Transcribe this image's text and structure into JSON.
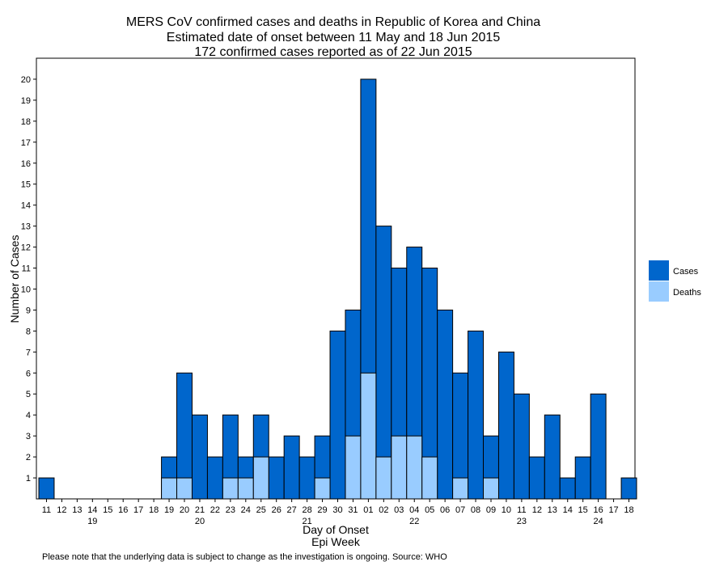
{
  "chart_data": {
    "type": "bar",
    "title": "MERS CoV confirmed cases and deaths in Republic of Korea and China",
    "subtitle": [
      "Estimated date of onset between 11 May and 18 Jun 2015",
      "172 confirmed cases reported as of 22 Jun 2015"
    ],
    "xlabel": "Day of Onset",
    "x2label": "Epi Week",
    "ylabel": "Number of Cases",
    "footnote": "Please note that the underlying data is subject to change as the investigation is ongoing. Source: WHO",
    "categories": [
      "11",
      "12",
      "13",
      "14",
      "15",
      "16",
      "17",
      "18",
      "19",
      "20",
      "21",
      "22",
      "23",
      "24",
      "25",
      "26",
      "27",
      "28",
      "29",
      "30",
      "31",
      "01",
      "02",
      "03",
      "04",
      "05",
      "06",
      "07",
      "08",
      "09",
      "10",
      "11",
      "12",
      "13",
      "14",
      "15",
      "16",
      "17",
      "18"
    ],
    "epi_weeks": [
      null,
      null,
      null,
      "19",
      null,
      null,
      null,
      null,
      null,
      null,
      "20",
      null,
      null,
      null,
      null,
      null,
      null,
      "21",
      null,
      null,
      null,
      null,
      null,
      null,
      "22",
      null,
      null,
      null,
      null,
      null,
      null,
      "23",
      null,
      null,
      null,
      null,
      "24",
      null,
      null
    ],
    "series": [
      {
        "name": "Cases",
        "color": "#0066cc",
        "values": [
          1,
          0,
          0,
          0,
          0,
          0,
          0,
          0,
          2,
          6,
          4,
          2,
          4,
          2,
          4,
          2,
          3,
          2,
          3,
          8,
          9,
          20,
          13,
          11,
          12,
          11,
          9,
          6,
          8,
          3,
          7,
          5,
          2,
          4,
          1,
          2,
          5,
          0,
          1
        ]
      },
      {
        "name": "Deaths",
        "color": "#99ccff",
        "values": [
          0,
          0,
          0,
          0,
          0,
          0,
          0,
          0,
          1,
          1,
          0,
          0,
          1,
          1,
          2,
          0,
          0,
          0,
          1,
          0,
          3,
          6,
          2,
          3,
          3,
          2,
          0,
          1,
          0,
          1,
          0,
          0,
          0,
          0,
          0,
          0,
          0,
          0,
          0
        ]
      }
    ],
    "overlay": true,
    "ylim": [
      0,
      21
    ],
    "yticks": [
      1,
      2,
      3,
      4,
      5,
      6,
      7,
      8,
      9,
      10,
      11,
      12,
      13,
      14,
      15,
      16,
      17,
      18,
      19,
      20
    ],
    "legend": "right"
  }
}
